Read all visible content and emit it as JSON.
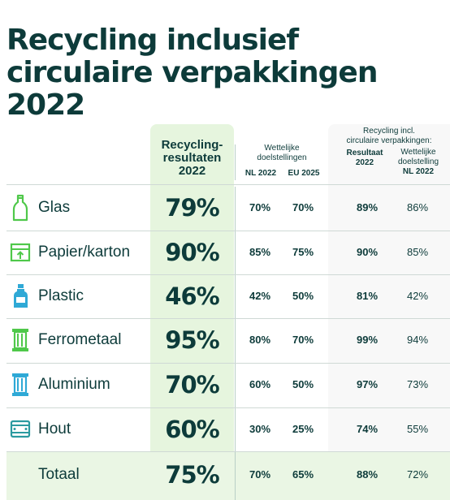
{
  "title": {
    "line1": "Recycling inclusief",
    "line2": "circulaire verpakkingen",
    "line3": "2022"
  },
  "headers": {
    "results_line1": "Recycling-",
    "results_line2": "resultaten",
    "results_line3": "2022",
    "legal_line1": "Wettelijke",
    "legal_line2": "doelstellingen",
    "nl2022": "NL 2022",
    "eu2025": "EU 2025",
    "circ_line1": "Recycling incl.",
    "circ_line2": "circulaire verpakkingen:",
    "result_line1": "Resultaat",
    "result_line2": "2022",
    "target_line1": "Wettelijke",
    "target_line2": "doelstelling",
    "target_line3": "NL 2022"
  },
  "rows": [
    {
      "icon": "glass-bottle-icon",
      "label": "Glas",
      "result": "79%",
      "nl2022": "70%",
      "eu2025": "70%",
      "circ_result": "89%",
      "circ_target": "86%"
    },
    {
      "icon": "cardboard-box-icon",
      "label": "Papier/karton",
      "result": "90%",
      "nl2022": "85%",
      "eu2025": "75%",
      "circ_result": "90%",
      "circ_target": "85%"
    },
    {
      "icon": "plastic-bottle-icon",
      "label": "Plastic",
      "result": "46%",
      "nl2022": "42%",
      "eu2025": "50%",
      "circ_result": "81%",
      "circ_target": "42%"
    },
    {
      "icon": "metal-can-icon",
      "label": "Ferrometaal",
      "result": "95%",
      "nl2022": "80%",
      "eu2025": "70%",
      "circ_result": "99%",
      "circ_target": "94%"
    },
    {
      "icon": "aluminium-can-icon",
      "label": "Aluminium",
      "result": "70%",
      "nl2022": "60%",
      "eu2025": "50%",
      "circ_result": "97%",
      "circ_target": "73%"
    },
    {
      "icon": "wooden-crate-icon",
      "label": "Hout",
      "result": "60%",
      "nl2022": "30%",
      "eu2025": "25%",
      "circ_result": "74%",
      "circ_target": "55%"
    }
  ],
  "total": {
    "label": "Totaal",
    "result": "75%",
    "nl2022": "70%",
    "eu2025": "65%",
    "circ_result": "88%",
    "circ_target": "72%"
  },
  "colors": {
    "text": "#0d3b3a",
    "highlight": "#e6f5de",
    "icon_green": "#4fc84a",
    "icon_blue": "#2fa9d6",
    "icon_teal": "#2b9aa0"
  }
}
